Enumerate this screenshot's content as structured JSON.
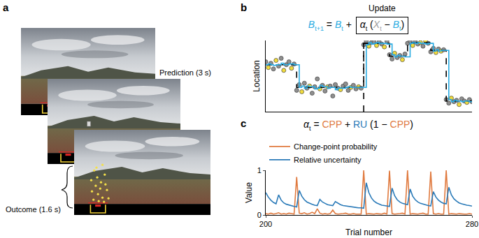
{
  "panel_a": {
    "panel_label": "a",
    "prediction_label": "Prediction (3 s)",
    "outcome_label": "Outcome (1.6 s)"
  },
  "chart_data": [
    {
      "panel_label": "b",
      "type": "line",
      "equation": [
        {
          "text": "B",
          "sub": "t+1",
          "color": "#29abe2"
        },
        {
          "text": " = "
        },
        {
          "text": "B",
          "sub": "t",
          "color": "#29abe2"
        },
        {
          "text": " + "
        }
      ],
      "boxed_equation": [
        {
          "text": "α",
          "sub": "t"
        },
        {
          "text": " ("
        },
        {
          "text": "X",
          "sub": "t",
          "color": "#9e9e9e"
        },
        {
          "text": " − "
        },
        {
          "text": "B",
          "sub": "t",
          "color": "#29abe2"
        },
        {
          "text": ")"
        }
      ],
      "box_label": "Update",
      "ylabel": "Location",
      "x": [
        200,
        201,
        202,
        203,
        204,
        205,
        206,
        207,
        208,
        209,
        210,
        211,
        212,
        213,
        214,
        215,
        216,
        217,
        218,
        219,
        220,
        221,
        222,
        223,
        224,
        225,
        226,
        227,
        228,
        229,
        230,
        231,
        232,
        233,
        234,
        235,
        236,
        237,
        238,
        239,
        240,
        241,
        242,
        243,
        244,
        245,
        246,
        247,
        248,
        249,
        250,
        251,
        252,
        253,
        254,
        255,
        256,
        257,
        258,
        259,
        260,
        261,
        262,
        263,
        264,
        265,
        266,
        267,
        268,
        269,
        270,
        271,
        272,
        273,
        274,
        275,
        276,
        277,
        278,
        279,
        280
      ],
      "xlim": [
        200,
        280
      ],
      "ylim": [
        0,
        100
      ],
      "tick_labels": false,
      "series": [
        {
          "type": "scatter",
          "marker": "circle",
          "values": [
            70,
            62,
            68,
            60,
            72,
            64,
            75,
            58,
            66,
            70,
            61,
            67,
            30,
            38,
            28,
            40,
            33,
            36,
            26,
            35,
            46,
            32,
            37,
            29,
            35,
            36,
            22,
            38,
            33,
            31,
            36,
            39,
            30,
            34,
            37,
            32,
            35,
            33,
            94,
            99,
            92,
            97,
            98,
            93,
            98,
            95,
            91,
            99,
            80,
            74,
            82,
            76,
            79,
            73,
            81,
            96,
            99,
            93,
            98,
            95,
            97,
            92,
            99,
            96,
            84,
            89,
            83,
            88,
            85,
            87,
            17,
            12,
            19,
            14,
            16,
            10,
            18,
            15,
            13,
            17,
            14
          ],
          "colors": [
            "#8f8f8f",
            "#f2dc3c",
            "#8f8f8f",
            "#8f8f8f",
            "#f2dc3c",
            "#8f8f8f",
            "#8f8f8f",
            "#f2dc3c",
            "#8f8f8f",
            "#8f8f8f",
            "#f2dc3c",
            "#8f8f8f",
            "#8f8f8f",
            "#8f8f8f",
            "#f2dc3c",
            "#8f8f8f",
            "#8f8f8f",
            "#f2dc3c",
            "#8f8f8f",
            "#8f8f8f",
            "#8f8f8f",
            "#f2dc3c",
            "#8f8f8f",
            "#8f8f8f",
            "#f2dc3c",
            "#8f8f8f",
            "#8f8f8f",
            "#8f8f8f",
            "#8f8f8f",
            "#f2dc3c",
            "#8f8f8f",
            "#8f8f8f",
            "#8f8f8f",
            "#f2dc3c",
            "#8f8f8f",
            "#8f8f8f",
            "#f2dc3c",
            "#8f8f8f",
            "#8f8f8f",
            "#8f8f8f",
            "#f2dc3c",
            "#8f8f8f",
            "#8f8f8f",
            "#f2dc3c",
            "#8f8f8f",
            "#8f8f8f",
            "#f2dc3c",
            "#8f8f8f",
            "#8f8f8f",
            "#8f8f8f",
            "#f2dc3c",
            "#8f8f8f",
            "#8f8f8f",
            "#f2dc3c",
            "#8f8f8f",
            "#8f8f8f",
            "#8f8f8f",
            "#f2dc3c",
            "#8f8f8f",
            "#8f8f8f",
            "#f2dc3c",
            "#8f8f8f",
            "#f2dc3c",
            "#8f8f8f",
            "#8f8f8f",
            "#8f8f8f",
            "#f2dc3c",
            "#8f8f8f",
            "#f2dc3c",
            "#8f8f8f",
            "#8f8f8f",
            "#8f8f8f",
            "#f2dc3c",
            "#8f8f8f",
            "#8f8f8f",
            "#f2dc3c",
            "#8f8f8f",
            "#8f8f8f",
            "#f2dc3c",
            "#8f8f8f",
            "#8f8f8f"
          ]
        },
        {
          "type": "line",
          "line_style": "dashed",
          "color": "#000000",
          "values": [
            66,
            66,
            66,
            66,
            66,
            66,
            66,
            66,
            66,
            66,
            66,
            66,
            34,
            34,
            34,
            34,
            34,
            34,
            34,
            34,
            34,
            34,
            34,
            34,
            34,
            34,
            34,
            34,
            34,
            34,
            34,
            34,
            34,
            34,
            34,
            34,
            34,
            34,
            96,
            96,
            96,
            96,
            96,
            96,
            96,
            96,
            96,
            96,
            78,
            78,
            78,
            78,
            78,
            78,
            78,
            97,
            97,
            97,
            97,
            97,
            97,
            97,
            97,
            97,
            86,
            86,
            86,
            86,
            86,
            86,
            15,
            15,
            15,
            15,
            15,
            15,
            15,
            15,
            15,
            15,
            15
          ]
        },
        {
          "type": "line",
          "line_style": "solid",
          "color": "#29abe2",
          "values": [
            66,
            67,
            66,
            65,
            66,
            66,
            68,
            66,
            66,
            67,
            67,
            66,
            66,
            34,
            36,
            33,
            36,
            35,
            35,
            32,
            33,
            37,
            35,
            35,
            33,
            34,
            34,
            31,
            33,
            33,
            33,
            34,
            35,
            34,
            34,
            34,
            34,
            34,
            34,
            94,
            97,
            95,
            96,
            97,
            96,
            96,
            96,
            95,
            95,
            80,
            77,
            79,
            78,
            78,
            77,
            77,
            96,
            97,
            96,
            97,
            96,
            96,
            95,
            96,
            96,
            85,
            87,
            85,
            86,
            86,
            86,
            17,
            14,
            16,
            15,
            15,
            14,
            15,
            15,
            14,
            15
          ]
        },
        {
          "type": "line",
          "line_style": "dashed",
          "color": "#000000",
          "x": [
            238,
            238
          ],
          "values": [
            0,
            100
          ]
        }
      ]
    },
    {
      "panel_label": "c",
      "type": "line",
      "equation": [
        {
          "text": "α",
          "sub": "t"
        },
        {
          "text": " = "
        },
        {
          "text": "CPP",
          "color": "#e07a3f"
        },
        {
          "text": " + "
        },
        {
          "text": "RU",
          "color": "#2a7ab8"
        },
        {
          "text": " (1 − "
        },
        {
          "text": "CPP",
          "color": "#e07a3f"
        },
        {
          "text": ")"
        }
      ],
      "xlabel": "Trial number",
      "ylabel": "Value",
      "x": [
        200,
        201,
        202,
        203,
        204,
        205,
        206,
        207,
        208,
        209,
        210,
        211,
        212,
        213,
        214,
        215,
        216,
        217,
        218,
        219,
        220,
        221,
        222,
        223,
        224,
        225,
        226,
        227,
        228,
        229,
        230,
        231,
        232,
        233,
        234,
        235,
        236,
        237,
        238,
        239,
        240,
        241,
        242,
        243,
        244,
        245,
        246,
        247,
        248,
        249,
        250,
        251,
        252,
        253,
        254,
        255,
        256,
        257,
        258,
        259,
        260,
        261,
        262,
        263,
        264,
        265,
        266,
        267,
        268,
        269,
        270,
        271,
        272,
        273,
        274,
        275,
        276,
        277,
        278,
        279,
        280
      ],
      "xlim": [
        200,
        280
      ],
      "xticks": [
        200,
        280
      ],
      "ylim": [
        0,
        1
      ],
      "yticks": [
        0,
        1
      ],
      "legend": "top",
      "series": [
        {
          "name": "Change-point probability",
          "color": "#e07a3f",
          "values": [
            0.03,
            0.02,
            0.04,
            0.02,
            0.03,
            0.05,
            0.02,
            0.03,
            0.02,
            0.04,
            0.03,
            0.02,
            0.85,
            0.04,
            0.03,
            0.05,
            0.02,
            0.03,
            0.06,
            0.03,
            0.14,
            0.04,
            0.02,
            0.03,
            0.02,
            0.03,
            0.11,
            0.03,
            0.02,
            0.02,
            0.03,
            0.04,
            0.02,
            0.02,
            0.03,
            0.02,
            0.02,
            0.02,
            1.0,
            0.02,
            0.03,
            0.02,
            0.02,
            0.03,
            0.02,
            0.02,
            0.04,
            0.02,
            0.99,
            0.03,
            0.02,
            0.02,
            0.03,
            0.04,
            0.02,
            1.0,
            0.02,
            0.03,
            0.02,
            0.02,
            0.03,
            0.04,
            0.02,
            0.02,
            0.97,
            0.03,
            0.02,
            0.03,
            0.02,
            0.02,
            1.0,
            0.02,
            0.03,
            0.02,
            0.02,
            0.03,
            0.02,
            0.02,
            0.02,
            0.03,
            0.02
          ]
        },
        {
          "name": "Relative uncertainty",
          "color": "#2a7ab8",
          "values": [
            0.5,
            0.4,
            0.33,
            0.28,
            0.25,
            0.45,
            0.33,
            0.27,
            0.24,
            0.22,
            0.2,
            0.19,
            0.18,
            0.55,
            0.42,
            0.34,
            0.29,
            0.26,
            0.24,
            0.22,
            0.21,
            0.35,
            0.29,
            0.26,
            0.23,
            0.22,
            0.21,
            0.3,
            0.26,
            0.23,
            0.21,
            0.2,
            0.19,
            0.18,
            0.17,
            0.17,
            0.16,
            0.16,
            0.15,
            0.72,
            0.5,
            0.38,
            0.31,
            0.27,
            0.24,
            0.22,
            0.21,
            0.2,
            0.19,
            0.6,
            0.43,
            0.34,
            0.29,
            0.26,
            0.24,
            0.23,
            0.58,
            0.42,
            0.34,
            0.29,
            0.26,
            0.24,
            0.22,
            0.21,
            0.2,
            0.52,
            0.4,
            0.33,
            0.29,
            0.26,
            0.25,
            0.62,
            0.45,
            0.36,
            0.31,
            0.27,
            0.25,
            0.23,
            0.22,
            0.21,
            0.2
          ]
        }
      ]
    }
  ]
}
